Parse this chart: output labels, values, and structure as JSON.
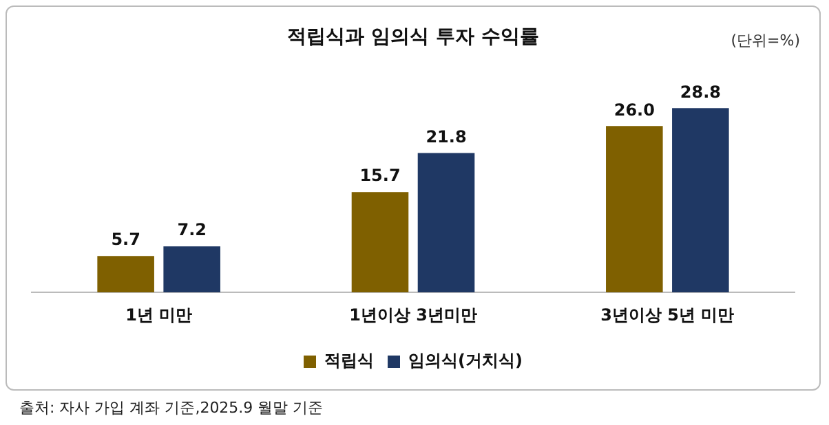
{
  "chart_data": {
    "type": "bar",
    "title": "적립식과 임의식 투자 수익률",
    "categories": [
      "1년 미만",
      "1년이상 3년미만",
      "3년이상 5년 미만"
    ],
    "series": [
      {
        "name": "적립식",
        "color": "#7f6000",
        "values": [
          5.7,
          15.7,
          26.0
        ],
        "value_labels": [
          "5.7",
          "15.7",
          "26.0"
        ]
      },
      {
        "name": "임의식(거치식)",
        "color": "#1f3864",
        "values": [
          7.2,
          21.8,
          28.8
        ],
        "value_labels": [
          "7.2",
          "21.8",
          "28.8"
        ]
      }
    ],
    "legend": "bottom",
    "grid": false,
    "tick_labels": "x",
    "annotations": [
      "(단위=%)",
      "출처: 자사 가입 계좌 기준,2025.9 월말 기준"
    ]
  }
}
